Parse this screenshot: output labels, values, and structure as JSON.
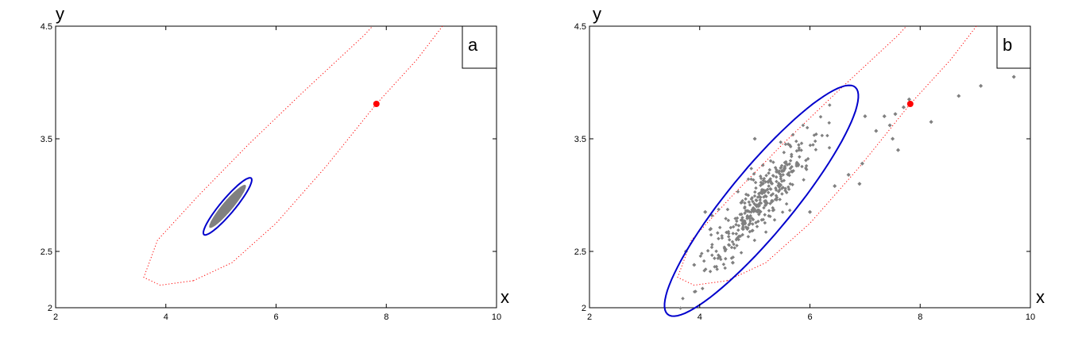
{
  "chart_data": [
    {
      "type": "scatter",
      "panel_label": "a",
      "xlabel": "x",
      "ylabel": "y",
      "xlim": [
        2,
        10
      ],
      "ylim": [
        2,
        4.5
      ],
      "xticks": [
        2,
        4,
        6,
        8,
        10
      ],
      "yticks": [
        2,
        2.5,
        3.5,
        4.5
      ],
      "grid": false,
      "colors": {
        "point": "#ff0000",
        "ellipse": "#0000cc",
        "region": "#ff0000",
        "cloud": "#808080"
      },
      "point": {
        "x": 7.82,
        "y": 3.81
      },
      "ellipse": {
        "cx": 5.12,
        "cy": 2.9,
        "rx": 0.5,
        "ry": 0.085,
        "angle_deg": 29
      },
      "cloud": {
        "cx": 5.12,
        "cy": 2.9,
        "rx": 0.38,
        "ry": 0.06,
        "angle_deg": 29
      },
      "dotted_region": [
        [
          4.5,
          2.24
        ],
        [
          3.9,
          2.2
        ],
        [
          3.6,
          2.27
        ],
        [
          3.85,
          2.6
        ],
        [
          4.6,
          3.0
        ],
        [
          5.5,
          3.45
        ],
        [
          6.5,
          3.92
        ],
        [
          7.6,
          4.42
        ],
        [
          7.75,
          4.5
        ],
        null,
        [
          9.02,
          4.5
        ],
        [
          8.55,
          4.2
        ],
        [
          7.82,
          3.81
        ],
        [
          6.9,
          3.25
        ],
        [
          6.0,
          2.75
        ],
        [
          5.2,
          2.4
        ],
        [
          4.5,
          2.24
        ]
      ]
    },
    {
      "type": "scatter",
      "panel_label": "b",
      "xlabel": "x",
      "ylabel": "y",
      "xlim": [
        2,
        10
      ],
      "ylim": [
        2,
        4.5
      ],
      "xticks": [
        2,
        4,
        6,
        8,
        10
      ],
      "yticks": [
        2,
        2.5,
        3.5,
        4.5
      ],
      "grid": false,
      "colors": {
        "point": "#ff0000",
        "ellipse": "#0000cc",
        "region": "#ff0000",
        "cloud": "#808080"
      },
      "point": {
        "x": 7.82,
        "y": 3.81
      },
      "ellipse": {
        "cx": 5.12,
        "cy": 2.95,
        "rx": 2.0,
        "ry": 0.38,
        "angle_deg": 29
      },
      "cloud": {
        "cx": 5.12,
        "cy": 2.95,
        "rx": 1.05,
        "ry": 0.13,
        "angle_deg": 29,
        "count": 360
      },
      "scatter_points": [
        [
          3.75,
          2.5
        ],
        [
          3.9,
          2.38
        ],
        [
          4.1,
          2.85
        ],
        [
          4.2,
          2.7
        ],
        [
          6.45,
          3.08
        ],
        [
          6.7,
          3.18
        ],
        [
          6.95,
          3.28
        ],
        [
          7.0,
          3.7
        ],
        [
          7.2,
          3.57
        ],
        [
          7.35,
          3.7
        ],
        [
          7.45,
          3.62
        ],
        [
          7.55,
          3.72
        ],
        [
          7.7,
          3.78
        ],
        [
          7.8,
          3.85
        ],
        [
          7.6,
          3.4
        ],
        [
          8.2,
          3.65
        ],
        [
          8.7,
          3.88
        ],
        [
          9.1,
          3.97
        ],
        [
          9.7,
          4.05
        ],
        [
          6.0,
          2.85
        ],
        [
          5.0,
          3.5
        ],
        [
          4.6,
          2.4
        ],
        [
          6.9,
          3.1
        ],
        [
          7.5,
          3.5
        ]
      ],
      "dotted_region": [
        [
          4.5,
          2.24
        ],
        [
          3.9,
          2.2
        ],
        [
          3.6,
          2.27
        ],
        [
          3.85,
          2.6
        ],
        [
          4.6,
          3.0
        ],
        [
          5.5,
          3.45
        ],
        [
          6.5,
          3.92
        ],
        [
          7.6,
          4.42
        ],
        [
          7.75,
          4.5
        ],
        null,
        [
          9.02,
          4.5
        ],
        [
          8.55,
          4.2
        ],
        [
          7.82,
          3.81
        ],
        [
          6.9,
          3.25
        ],
        [
          6.0,
          2.75
        ],
        [
          5.2,
          2.4
        ],
        [
          4.5,
          2.24
        ]
      ]
    }
  ]
}
